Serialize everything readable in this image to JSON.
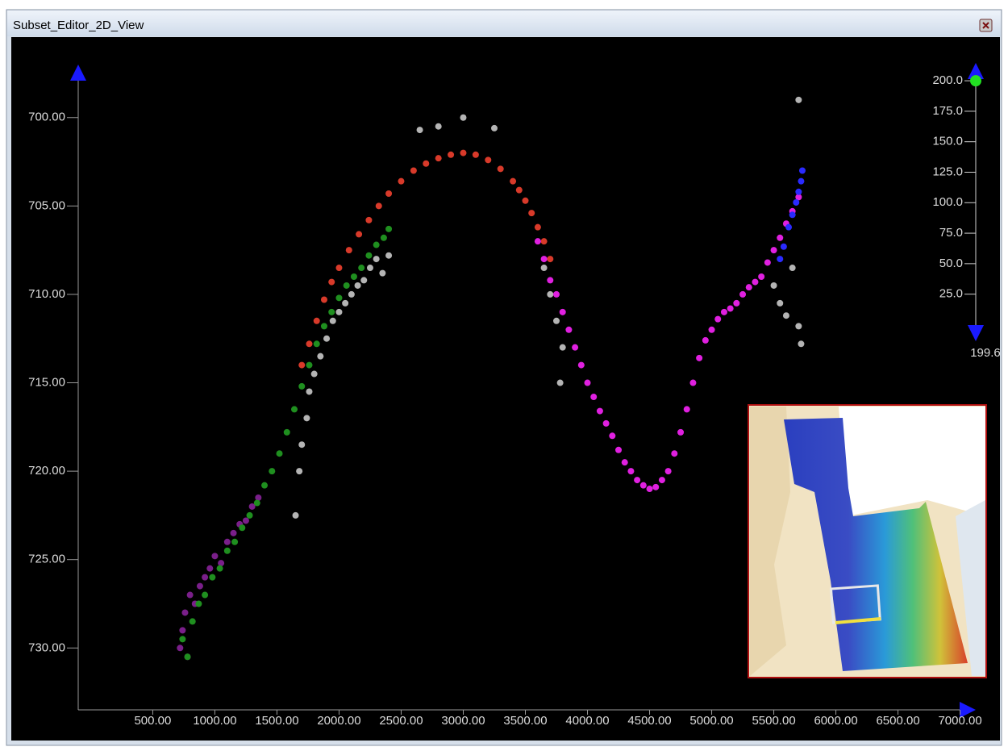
{
  "window": {
    "title": "Subset_Editor_2D_View"
  },
  "chart_data": {
    "type": "scatter",
    "xlim": [
      -100,
      7100
    ],
    "ylim": [
      697,
      733.5
    ],
    "y_inverted": true,
    "xticks": [
      {
        "value": 500,
        "label": "500.00"
      },
      {
        "value": 1000,
        "label": "1000.00"
      },
      {
        "value": 1500,
        "label": "1500.00"
      },
      {
        "value": 2000,
        "label": "2000.00"
      },
      {
        "value": 2500,
        "label": "2500.00"
      },
      {
        "value": 3000,
        "label": "3000.00"
      },
      {
        "value": 3500,
        "label": "3500.00"
      },
      {
        "value": 4000,
        "label": "4000.00"
      },
      {
        "value": 4500,
        "label": "4500.00"
      },
      {
        "value": 5000,
        "label": "5000.00"
      },
      {
        "value": 5500,
        "label": "5500.00"
      },
      {
        "value": 6000,
        "label": "6000.00"
      },
      {
        "value": 6500,
        "label": "6500.00"
      },
      {
        "value": 7000,
        "label": "7000.00"
      }
    ],
    "yticks": [
      {
        "value": 700,
        "label": "700.00"
      },
      {
        "value": 705,
        "label": "705.00"
      },
      {
        "value": 710,
        "label": "710.00"
      },
      {
        "value": 715,
        "label": "715.00"
      },
      {
        "value": 720,
        "label": "720.00"
      },
      {
        "value": 725,
        "label": "725.00"
      },
      {
        "value": 730,
        "label": "730.00"
      }
    ],
    "series": [
      {
        "color": "#b4b4b4",
        "x": [
          1650,
          1680,
          1700,
          1740,
          1760,
          1800,
          1850,
          1900,
          1950,
          2000,
          2050,
          2100,
          2150,
          2200,
          2250,
          2300,
          2350,
          2400,
          2650,
          2800,
          3000,
          3250,
          3650,
          3700,
          3750,
          3800,
          3780,
          5500,
          5550,
          5600,
          5650,
          5700,
          5720,
          5700
        ],
        "values": [
          722.5,
          720,
          718.5,
          717,
          715.5,
          714.5,
          713.5,
          712.5,
          711.5,
          711,
          710.5,
          710,
          709.5,
          709.2,
          708.5,
          708,
          708.8,
          707.8,
          700.7,
          700.5,
          700,
          700.6,
          708.5,
          710,
          711.5,
          713,
          715,
          709.5,
          710.5,
          711.2,
          708.5,
          711.8,
          712.8,
          699
        ]
      },
      {
        "color": "#7a1f8a",
        "x": [
          720,
          740,
          760,
          780,
          800,
          840,
          880,
          920,
          960,
          1000,
          1050,
          1100,
          1150,
          1200,
          1250,
          1300,
          1350
        ],
        "values": [
          730,
          729,
          728,
          730.5,
          727,
          727.5,
          726.5,
          726,
          725.5,
          724.8,
          725.2,
          724,
          723.5,
          723,
          722.8,
          722,
          721.5
        ]
      },
      {
        "color": "#1f8f1f",
        "x": [
          740,
          780,
          820,
          870,
          920,
          980,
          1040,
          1100,
          1160,
          1220,
          1280,
          1340,
          1400,
          1460,
          1520,
          1580,
          1640,
          1700,
          1760,
          1820,
          1880,
          1940,
          2000,
          2060,
          2120,
          2180,
          2240,
          2300,
          2360,
          2400
        ],
        "values": [
          729.5,
          730.5,
          728.5,
          727.5,
          727,
          726,
          725.5,
          724.5,
          724,
          723.2,
          722.5,
          721.8,
          720.8,
          720,
          719,
          717.8,
          716.5,
          715.2,
          714,
          712.8,
          711.8,
          711,
          710.2,
          709.5,
          709,
          708.5,
          707.8,
          707.2,
          706.8,
          706.3
        ]
      },
      {
        "color": "#d83a2a",
        "x": [
          1700,
          1760,
          1820,
          1880,
          1940,
          2000,
          2080,
          2160,
          2240,
          2320,
          2400,
          2500,
          2600,
          2700,
          2800,
          2900,
          3000,
          3100,
          3200,
          3300,
          3400,
          3450,
          3500,
          3550,
          3600,
          3650,
          3700
        ],
        "values": [
          714,
          712.8,
          711.5,
          710.3,
          709.3,
          708.5,
          707.5,
          706.6,
          705.8,
          705,
          704.3,
          703.6,
          703,
          702.6,
          702.3,
          702.1,
          702,
          702.1,
          702.4,
          702.9,
          703.6,
          704.1,
          704.7,
          705.4,
          706.2,
          707,
          708
        ]
      },
      {
        "color": "#e020e0",
        "x": [
          3600,
          3650,
          3700,
          3750,
          3800,
          3850,
          3900,
          3950,
          4000,
          4050,
          4100,
          4150,
          4200,
          4250,
          4300,
          4350,
          4400,
          4450,
          4500,
          4550,
          4600,
          4650,
          4700,
          4750,
          4800,
          4850,
          4900,
          4950,
          5000,
          5050,
          5100,
          5150,
          5200,
          5250,
          5300,
          5350,
          5400,
          5450,
          5500,
          5550,
          5600,
          5650,
          5700
        ],
        "values": [
          707,
          708,
          709.2,
          710,
          711,
          712,
          713,
          714,
          715,
          715.8,
          716.6,
          717.3,
          718,
          718.8,
          719.5,
          720,
          720.5,
          720.8,
          721,
          720.9,
          720.5,
          720,
          719,
          717.8,
          716.5,
          715,
          713.6,
          712.6,
          712,
          711.4,
          711,
          710.8,
          710.5,
          710,
          709.6,
          709.3,
          709,
          708.2,
          707.5,
          706.8,
          706,
          705.3,
          704.5
        ]
      },
      {
        "color": "#2a2aff",
        "x": [
          5550,
          5580,
          5620,
          5650,
          5680,
          5700,
          5720,
          5730
        ],
        "values": [
          708,
          707.3,
          706.2,
          705.5,
          704.8,
          704.2,
          703.6,
          703
        ]
      }
    ]
  },
  "depth_scale": {
    "lim": [
      -5,
      210
    ],
    "marker": 200,
    "ticks": [
      {
        "value": 200,
        "label": "200.0"
      },
      {
        "value": 175,
        "label": "175.0"
      },
      {
        "value": 150,
        "label": "150.0"
      },
      {
        "value": 125,
        "label": "125.0"
      },
      {
        "value": 100,
        "label": "100.0"
      },
      {
        "value": 75,
        "label": "75.0"
      },
      {
        "value": 50,
        "label": "50.0"
      },
      {
        "value": 25,
        "label": "25.0"
      }
    ],
    "bottom_label": "199.6"
  }
}
